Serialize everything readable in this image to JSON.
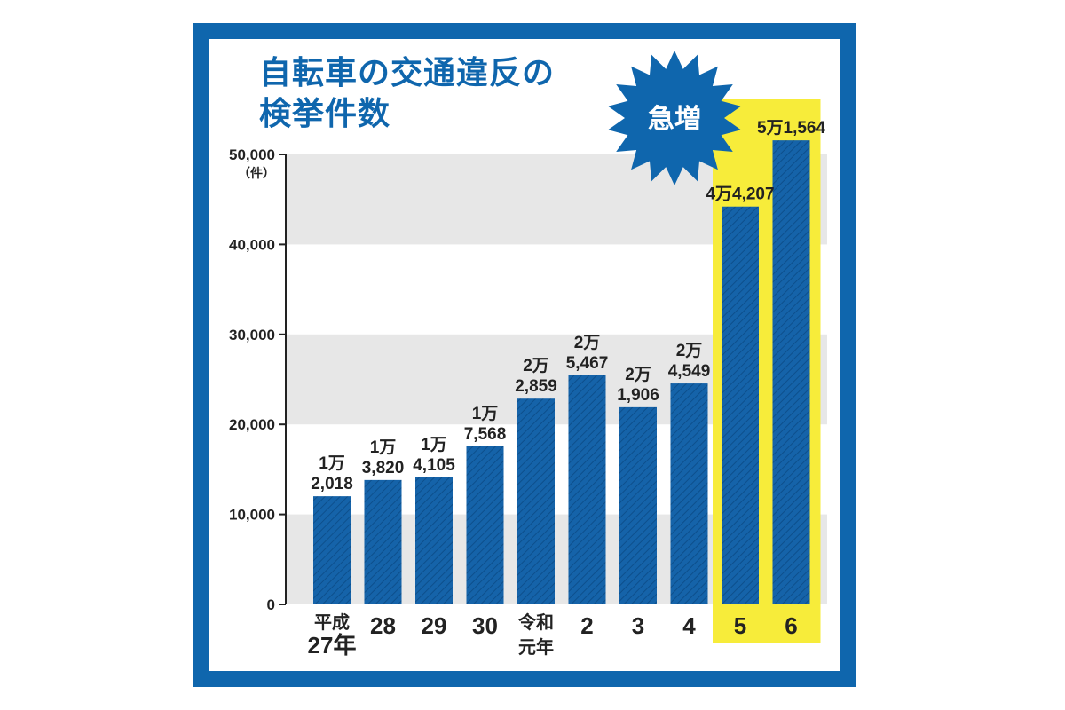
{
  "title_lines": [
    "自転車の交通違反の",
    "検挙件数"
  ],
  "callout": "急増",
  "colors": {
    "frame": "#0f66ad",
    "bar": "#1563a9",
    "highlight": "#f7ec3a",
    "band": "#e7e7e7",
    "text": "#222222"
  },
  "chart_data": {
    "type": "bar",
    "title": "自転車の交通違反の検挙件数",
    "ylabel": "（件）",
    "ylim": [
      0,
      50000
    ],
    "yticks": [
      0,
      10000,
      20000,
      30000,
      40000,
      50000
    ],
    "ytick_labels": [
      "0",
      "10,000",
      "20,000",
      "30,000",
      "40,000",
      "50,000"
    ],
    "categories": [
      [
        "平成",
        "27年"
      ],
      [
        "28"
      ],
      [
        "29"
      ],
      [
        "30"
      ],
      [
        "令和",
        "元年"
      ],
      [
        "2"
      ],
      [
        "3"
      ],
      [
        "4"
      ],
      [
        "5"
      ],
      [
        "6"
      ]
    ],
    "values": [
      12018,
      13820,
      14105,
      17568,
      22859,
      25467,
      21906,
      24549,
      44207,
      51564
    ],
    "value_labels": [
      [
        "1万",
        "2,018"
      ],
      [
        "1万",
        "3,820"
      ],
      [
        "1万",
        "4,105"
      ],
      [
        "1万",
        "7,568"
      ],
      [
        "2万",
        "2,859"
      ],
      [
        "2万",
        "5,467"
      ],
      [
        "2万",
        "1,906"
      ],
      [
        "2万",
        "4,549"
      ],
      [
        "4万4,207"
      ],
      [
        "5万1,564"
      ]
    ],
    "highlighted": [
      8,
      9
    ],
    "grid_bands": true
  }
}
